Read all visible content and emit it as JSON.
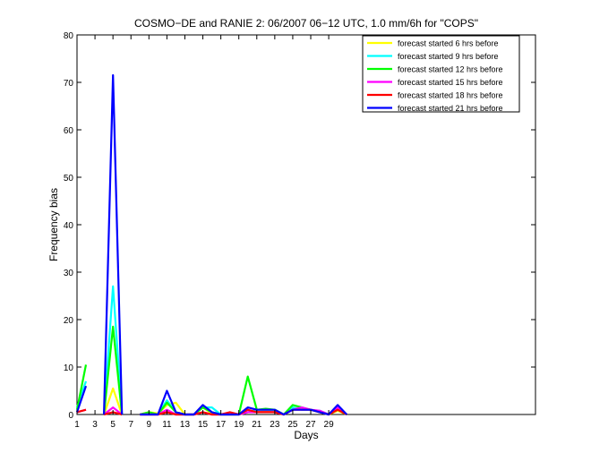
{
  "chart_data": {
    "type": "line",
    "title": "COSMO−DE and RANIE 2: 06/2007 06−12 UTC, 1.0 mm/6h for \"COPS\"",
    "xlabel": "Days",
    "ylabel": "Frequency bias",
    "xlim": [
      1,
      52
    ],
    "ylim": [
      0,
      80
    ],
    "xticks": [
      1,
      3,
      5,
      7,
      9,
      11,
      13,
      15,
      17,
      19,
      21,
      23,
      25,
      27,
      29
    ],
    "yticks": [
      0,
      10,
      20,
      30,
      40,
      50,
      60,
      70,
      80
    ],
    "grid": false,
    "legend_position": "top-right",
    "x": [
      1,
      2,
      3,
      4,
      5,
      6,
      7,
      8,
      9,
      10,
      11,
      12,
      13,
      14,
      15,
      16,
      17,
      18,
      19,
      20,
      21,
      22,
      23,
      24,
      25,
      26,
      27,
      28,
      29,
      30,
      31
    ],
    "series": [
      {
        "name": "forecast started 6 hrs before",
        "color": "#ffff00",
        "values": [
          1.0,
          6.0,
          null,
          0.0,
          5.5,
          0.0,
          null,
          0.0,
          0.5,
          0.2,
          2.0,
          2.5,
          0.0,
          0.0,
          1.5,
          0.2,
          0.0,
          0.0,
          0.0,
          0.5,
          0.5,
          0.8,
          1.0,
          0.0,
          1.0,
          1.2,
          1.0,
          0.5,
          0.0,
          0.8,
          0.0
        ]
      },
      {
        "name": "forecast started 9 hrs before",
        "color": "#00ffff",
        "values": [
          1.5,
          7.0,
          null,
          0.0,
          27.0,
          0.0,
          null,
          0.0,
          0.3,
          0.0,
          3.0,
          0.5,
          0.0,
          0.0,
          1.5,
          1.5,
          0.0,
          0.0,
          0.0,
          0.5,
          1.0,
          1.0,
          1.0,
          0.0,
          1.5,
          1.0,
          1.0,
          0.8,
          0.0,
          1.5,
          0.0
        ]
      },
      {
        "name": "forecast started 12 hrs before",
        "color": "#00ff00",
        "values": [
          1.0,
          10.5,
          null,
          0.0,
          18.5,
          0.0,
          null,
          0.0,
          0.5,
          0.0,
          2.5,
          0.5,
          0.0,
          0.0,
          1.5,
          0.5,
          0.0,
          0.0,
          0.0,
          8.0,
          1.0,
          1.2,
          1.0,
          0.0,
          2.0,
          1.5,
          1.0,
          0.5,
          0.0,
          1.0,
          0.0
        ]
      },
      {
        "name": "forecast started 15 hrs before",
        "color": "#ff00ff",
        "values": [
          0.5,
          1.0,
          null,
          0.0,
          1.5,
          0.0,
          null,
          0.0,
          0.0,
          0.0,
          1.0,
          0.0,
          0.0,
          0.0,
          0.5,
          0.0,
          0.0,
          0.0,
          0.0,
          0.5,
          0.5,
          0.5,
          0.5,
          0.0,
          1.0,
          1.5,
          1.0,
          0.8,
          0.0,
          1.5,
          0.0
        ]
      },
      {
        "name": "forecast started 18 hrs before",
        "color": "#ff0000",
        "values": [
          0.5,
          1.0,
          null,
          0.0,
          0.5,
          0.0,
          null,
          0.0,
          0.0,
          0.0,
          0.5,
          0.0,
          0.0,
          0.0,
          0.5,
          0.0,
          0.0,
          0.5,
          0.0,
          1.0,
          0.5,
          0.5,
          0.5,
          0.0,
          1.0,
          1.0,
          1.0,
          0.5,
          0.0,
          1.0,
          0.0
        ]
      },
      {
        "name": "forecast started 21 hrs before",
        "color": "#0000ff",
        "values": [
          0.5,
          6.0,
          null,
          0.0,
          71.5,
          0.0,
          null,
          0.0,
          0.0,
          0.0,
          5.0,
          0.5,
          0.0,
          0.0,
          2.0,
          0.5,
          0.0,
          0.0,
          0.0,
          1.5,
          1.0,
          1.0,
          1.0,
          0.0,
          1.0,
          1.0,
          1.0,
          0.5,
          0.0,
          2.0,
          0.0
        ]
      }
    ]
  }
}
